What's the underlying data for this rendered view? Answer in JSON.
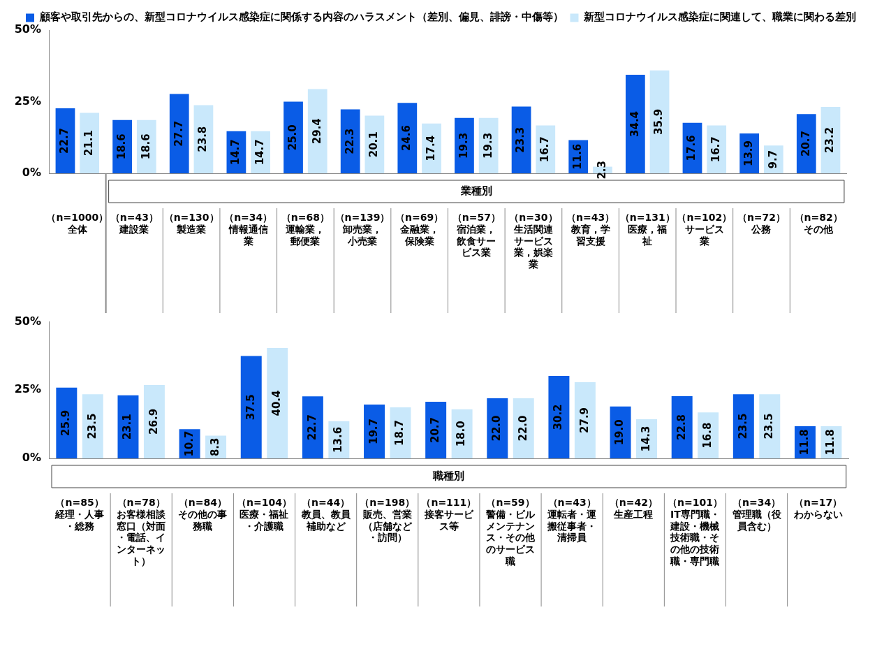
{
  "chart_data": [
    {
      "type": "bar",
      "legend": "top",
      "ylim": [
        0,
        50
      ],
      "yticks": [
        {
          "value": 0,
          "label": "0%"
        },
        {
          "value": 25,
          "label": "25%"
        },
        {
          "value": 50,
          "label": "50%"
        }
      ],
      "annotations": [
        "業種別"
      ],
      "categories": [
        "（n=1000）全体",
        "（n=43）建設業",
        "（n=130）製造業",
        "（n=34）情報通信業",
        "（n=68）運輸業，郵便業",
        "（n=139）卸売業，小売業",
        "（n=69）金融業，保険業",
        "（n=57）宿泊業，飲食サービス業",
        "（n=30）生活関連サービス業，娯楽業",
        "（n=43）教育，学習支援",
        "（n=131）医療，福祉",
        "（n=102）サービス業",
        "（n=72）公務",
        "（n=82）その他"
      ],
      "series": [
        {
          "name": "顧客や取引先からの、新型コロナウイルス感染症に関係する内容のハラスメント（差別、偏見、誹謗・中傷等）",
          "color": "#0a5ce6",
          "values": [
            22.7,
            18.6,
            27.7,
            14.7,
            25.0,
            22.3,
            24.6,
            19.3,
            23.3,
            11.6,
            34.4,
            17.6,
            13.9,
            20.7
          ],
          "value_labels": [
            "22.7",
            "18.6",
            "27.7",
            "14.7",
            "25.0",
            "22.3",
            "24.6",
            "19.3",
            "23.3",
            "11.6",
            "34.4",
            "17.6",
            "13.9",
            "20.7"
          ]
        },
        {
          "name": "新型コロナウイルス感染症に関連して、職業に関わる差別",
          "color": "#c9e8fb",
          "values": [
            21.1,
            18.6,
            23.8,
            14.7,
            29.4,
            20.1,
            17.4,
            19.3,
            16.7,
            2.3,
            35.9,
            16.7,
            9.7,
            23.2
          ],
          "value_labels": [
            "21.1",
            "18.6",
            "23.8",
            "14.7",
            "29.4",
            "20.1",
            "17.4",
            "19.3",
            "16.7",
            "2.3",
            "35.9",
            "16.7",
            "9.7",
            "23.2"
          ]
        }
      ]
    },
    {
      "type": "bar",
      "ylim": [
        0,
        50
      ],
      "yticks": [
        {
          "value": 0,
          "label": "0%"
        },
        {
          "value": 25,
          "label": "25%"
        },
        {
          "value": 50,
          "label": "50%"
        }
      ],
      "annotations": [
        "職種別"
      ],
      "categories": [
        "（n=85）経理・人事・総務",
        "（n=78）お客様相談窓口（対面・電話、インターネット）",
        "（n=84）その他の事務職",
        "（n=104）医療・福祉・介護職",
        "（n=44）教員、教員補助など",
        "（n=198）販売、営業（店舗など・訪問）",
        "（n=111）接客サービス等",
        "（n=59）警備・ビルメンテナンス・その他のサービス職",
        "（n=43）運転者・運搬従事者・清掃員",
        "（n=42）生産工程",
        "（n=101）IT専門職・建設・機械技術職・その他の技術職・専門職",
        "（n=34）管理職（役員含む）",
        "（n=17）わからない"
      ],
      "series": [
        {
          "color": "#0a5ce6",
          "values": [
            25.9,
            23.1,
            10.7,
            37.5,
            22.7,
            19.7,
            20.7,
            22.0,
            30.2,
            19.0,
            22.8,
            23.5,
            11.8
          ],
          "value_labels": [
            "25.9",
            "23.1",
            "10.7",
            "37.5",
            "22.7",
            "19.7",
            "20.7",
            "22.0",
            "30.2",
            "19.0",
            "22.8",
            "23.5",
            "11.8"
          ]
        },
        {
          "color": "#c9e8fb",
          "values": [
            23.5,
            26.9,
            8.3,
            40.4,
            13.6,
            18.7,
            18.0,
            22.0,
            27.9,
            14.3,
            16.8,
            23.5,
            11.8
          ],
          "value_labels": [
            "23.5",
            "26.9",
            "8.3",
            "40.4",
            "13.6",
            "18.7",
            "18.0",
            "22.0",
            "27.9",
            "14.3",
            "16.8",
            "23.5",
            "11.8"
          ]
        }
      ]
    }
  ]
}
